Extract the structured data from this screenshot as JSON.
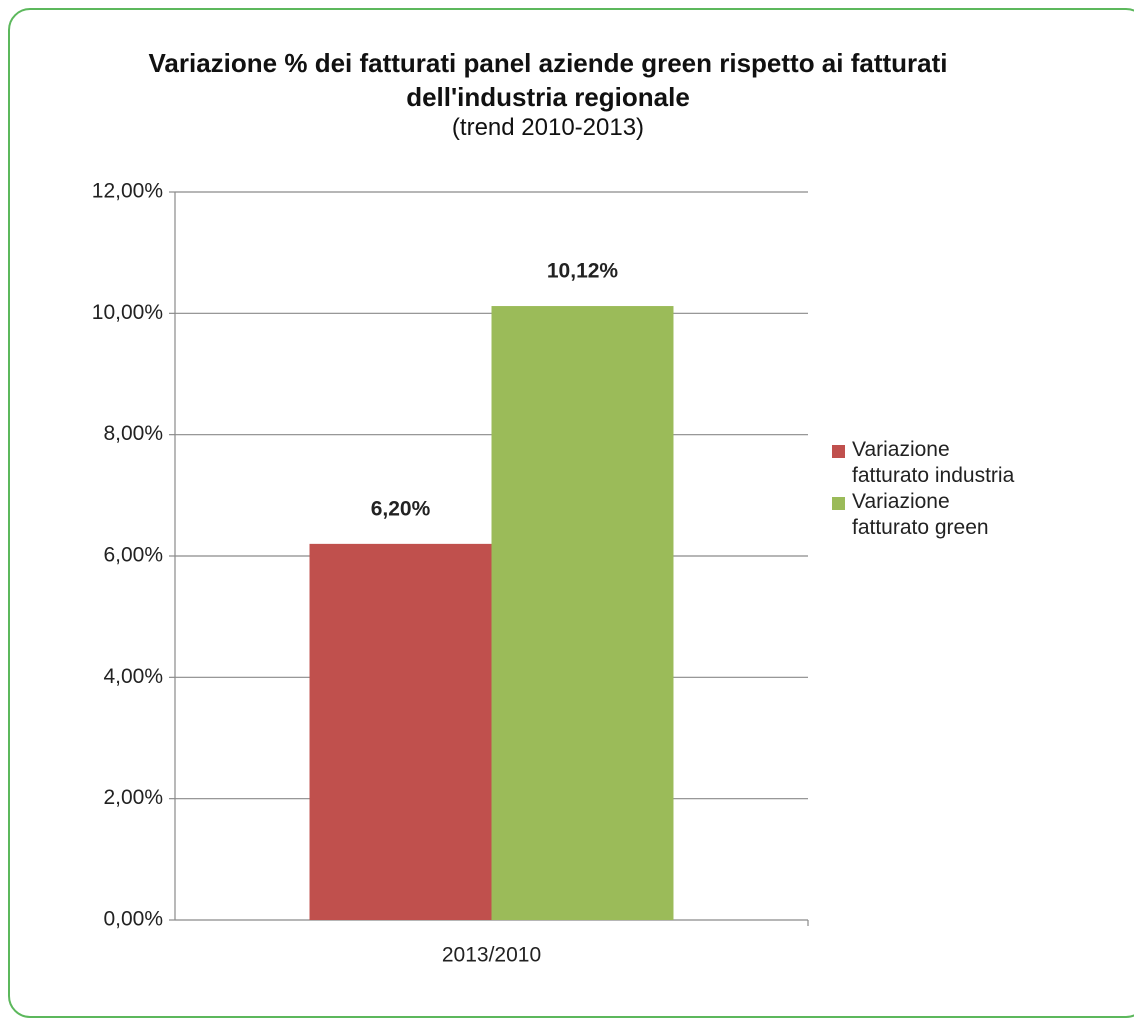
{
  "chart_data": {
    "type": "bar",
    "title": "Variazione % dei fatturati panel aziende green rispetto ai fatturati dell'industria regionale",
    "subtitle": "(trend 2010-2013)",
    "categories": [
      "2013/2010"
    ],
    "series": [
      {
        "name": "Variazione fatturato industria",
        "color": "#c0504d",
        "values": [
          6.2
        ],
        "value_labels": [
          "6,20%"
        ]
      },
      {
        "name": "Variazione fatturato green",
        "color": "#9bbb59",
        "values": [
          10.12
        ],
        "value_labels": [
          "10,12%"
        ]
      }
    ],
    "ylim": [
      0,
      12
    ],
    "yticks": [
      {
        "value": 0,
        "label": "0,00%"
      },
      {
        "value": 2,
        "label": "2,00%"
      },
      {
        "value": 4,
        "label": "4,00%"
      },
      {
        "value": 6,
        "label": "6,00%"
      },
      {
        "value": 8,
        "label": "8,00%"
      },
      {
        "value": 10,
        "label": "10,00%"
      },
      {
        "value": 12,
        "label": "12,00%"
      }
    ],
    "grid": true,
    "legend": "right"
  }
}
